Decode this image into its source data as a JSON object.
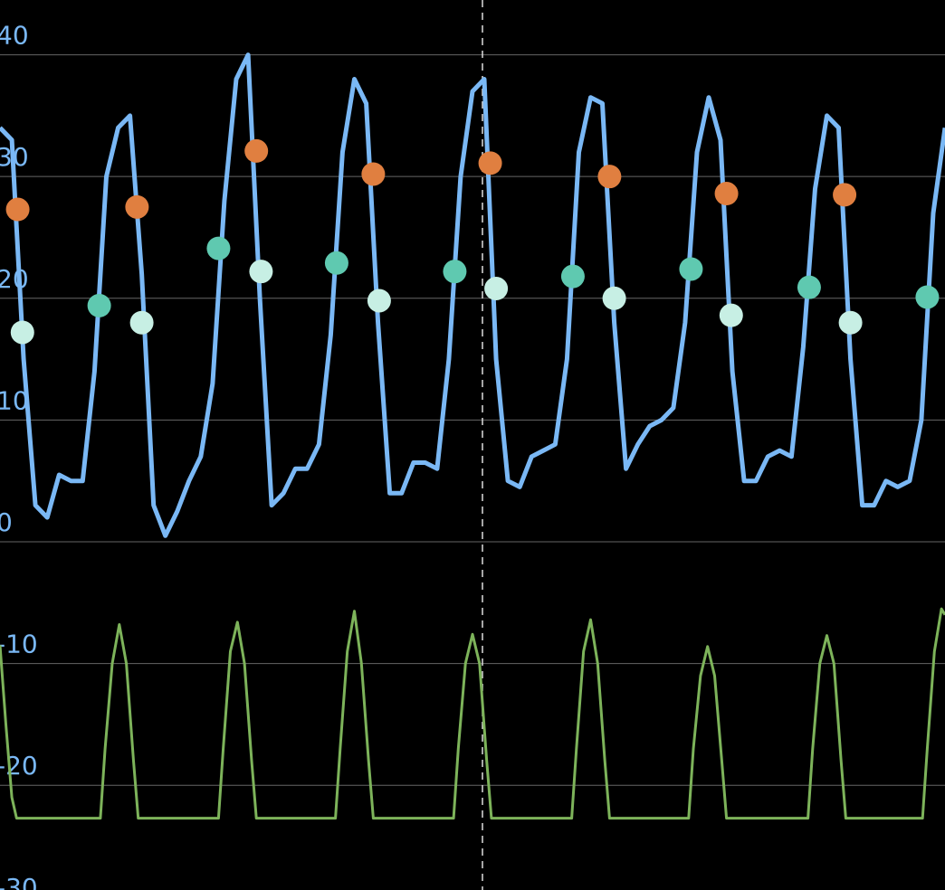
{
  "chart_data": {
    "type": "line",
    "xlim": [
      0,
      80
    ],
    "ylim": [
      -28.6,
      44.5
    ],
    "yticks": [
      -30,
      -20,
      -10,
      0,
      10,
      20,
      30,
      40
    ],
    "grid": true,
    "x": [
      0,
      1,
      2,
      3,
      4,
      5,
      6,
      7,
      8,
      9,
      10,
      11,
      12,
      13,
      14,
      15,
      16,
      17,
      18,
      19,
      20,
      21,
      22,
      23,
      24,
      25,
      26,
      27,
      28,
      29,
      30,
      31,
      32,
      33,
      34,
      35,
      36,
      37,
      38,
      39,
      40,
      41,
      42,
      43,
      44,
      45,
      46,
      47,
      48,
      49,
      50,
      51,
      52,
      53,
      54,
      55,
      56,
      57,
      58,
      59,
      60,
      61,
      62,
      63,
      64,
      65,
      66,
      67,
      68,
      69,
      70,
      71,
      72,
      73,
      74,
      75,
      76,
      77,
      78,
      79,
      80
    ],
    "series": [
      {
        "type": "line",
        "color": "#7ab8f5",
        "values": [
          34,
          33,
          15,
          3,
          2,
          5.5,
          5,
          5,
          14,
          30,
          34,
          35,
          22,
          3,
          0.5,
          2.5,
          5,
          7,
          13,
          28,
          38,
          40,
          20,
          3,
          4,
          6,
          6,
          8,
          17,
          32,
          38,
          36,
          18,
          4,
          4,
          6.5,
          6.5,
          6,
          15,
          30,
          37,
          38,
          15,
          5,
          4.5,
          7,
          7.5,
          8,
          15,
          32,
          36.5,
          36,
          18,
          6,
          8,
          9.5,
          10,
          11,
          18,
          32,
          36.5,
          33,
          14,
          5,
          5,
          7,
          7.5,
          7,
          16,
          29,
          35,
          34,
          15,
          3,
          3,
          5,
          4.5,
          5,
          10,
          27,
          34
        ]
      },
      {
        "type": "line",
        "color": "#7db35a",
        "x": [
          0,
          0.5,
          1,
          1.4,
          8.5,
          8.9,
          9.5,
          10.1,
          10.7,
          11.3,
          11.7,
          18.5,
          18.9,
          19.5,
          20.1,
          20.7,
          21.3,
          21.7,
          28.4,
          28.8,
          29.4,
          30,
          30.6,
          31.2,
          31.6,
          38.4,
          38.8,
          39.4,
          40,
          40.6,
          41.2,
          41.6,
          48.4,
          48.8,
          49.4,
          50,
          50.6,
          51.2,
          51.6,
          58.3,
          58.7,
          59.3,
          59.9,
          60.5,
          61.1,
          61.5,
          68.4,
          68.8,
          69.4,
          70,
          70.6,
          71.2,
          71.6,
          78.1,
          78.5,
          79.1,
          79.7,
          80
        ],
        "values": [
          -8.5,
          -15,
          -21,
          -22.7,
          -22.7,
          -17,
          -10,
          -6.8,
          -10,
          -18,
          -22.7,
          -22.7,
          -17,
          -9,
          -6.6,
          -10,
          -18,
          -22.7,
          -22.7,
          -17,
          -9,
          -5.7,
          -10,
          -18,
          -22.7,
          -22.7,
          -17,
          -10,
          -7.6,
          -10,
          -18,
          -22.7,
          -22.7,
          -17,
          -9,
          -6.4,
          -10,
          -18,
          -22.7,
          -22.7,
          -17,
          -11,
          -8.6,
          -11,
          -18,
          -22.7,
          -22.7,
          -17,
          -10,
          -7.7,
          -10,
          -18,
          -22.7,
          -22.7,
          -17,
          -9,
          -5.5,
          -6
        ]
      },
      {
        "type": "scatter",
        "color": "#e07f40",
        "x": [
          1.5,
          11.6,
          21.7,
          31.6,
          41.5,
          51.6,
          61.5,
          71.5
        ],
        "values": [
          27.3,
          27.5,
          32.1,
          30.2,
          31.1,
          30,
          28.6,
          28.5
        ]
      },
      {
        "type": "scatter",
        "color": "#5fc9b0",
        "x": [
          8.4,
          18.5,
          28.5,
          38.5,
          48.5,
          58.5,
          68.5,
          78.5
        ],
        "values": [
          19.4,
          24.1,
          22.9,
          22.2,
          21.8,
          22.4,
          20.9,
          20.1
        ]
      },
      {
        "type": "scatter",
        "color": "#c7efe4",
        "x": [
          1.9,
          12,
          22.1,
          32.1,
          42,
          52,
          61.9,
          72
        ],
        "values": [
          17.2,
          18,
          22.2,
          19.8,
          20.8,
          20,
          18.6,
          18
        ]
      }
    ]
  }
}
